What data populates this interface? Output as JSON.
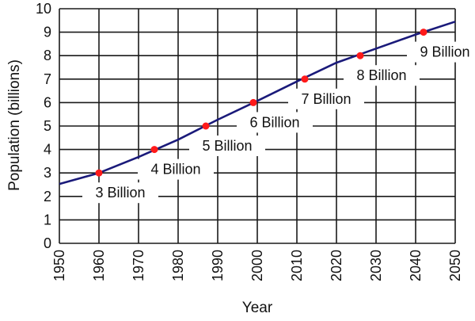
{
  "chart_data": {
    "type": "line",
    "title": "",
    "xlabel": "Year",
    "ylabel": "Population  (billions)",
    "xlim": [
      1950,
      2050
    ],
    "ylim": [
      0,
      10
    ],
    "x_ticks": [
      1950,
      1960,
      1970,
      1980,
      1990,
      2000,
      2010,
      2020,
      2030,
      2040,
      2050
    ],
    "y_ticks": [
      0,
      1,
      2,
      3,
      4,
      5,
      6,
      7,
      8,
      9,
      10
    ],
    "grid": true,
    "series": [
      {
        "color": "#1a1a7a",
        "x": [
          1950,
          1960,
          1970,
          1980,
          1990,
          2000,
          2010,
          2020,
          2030,
          2040,
          2050
        ],
        "values": [
          2.53,
          3.0,
          3.68,
          4.42,
          5.27,
          6.07,
          6.9,
          7.7,
          8.3,
          8.9,
          9.45
        ]
      }
    ],
    "milestones": [
      {
        "year": 1960,
        "value": 3,
        "label": "3 Billion"
      },
      {
        "year": 1974,
        "value": 4,
        "label": "4 Billion"
      },
      {
        "year": 1987,
        "value": 5,
        "label": "5 Billion"
      },
      {
        "year": 1999,
        "value": 6,
        "label": "6 Billion"
      },
      {
        "year": 2012,
        "value": 7,
        "label": "7 Billion"
      },
      {
        "year": 2026,
        "value": 8,
        "label": "8 Billion"
      },
      {
        "year": 2042,
        "value": 9,
        "label": "9 Billion"
      }
    ],
    "marker_color": "#ff1a1a",
    "grid_color": "#1a1a1a"
  }
}
